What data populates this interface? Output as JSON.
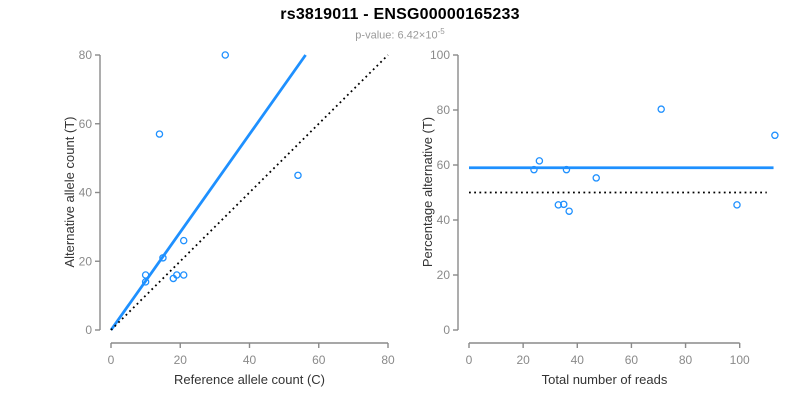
{
  "header": {
    "title": "rs3819011 - ENSG00000165233",
    "p_value_text": "p-value: 6.42×10",
    "p_value_exponent": "-5"
  },
  "colors": {
    "accent_blue": "#1E90FF",
    "axis_gray": "#8a8a8a",
    "tick_label_gray": "#8a8a8a",
    "axis_label_dark": "#333333",
    "dotted_black": "#000000",
    "subtitle_gray": "#9a9a9a",
    "background": "#ffffff"
  },
  "chart_data": [
    {
      "id": "allele-counts",
      "type": "scatter",
      "title": "",
      "xlabel": "Reference allele count (C)",
      "ylabel": "Alternative allele count (T)",
      "xlim": [
        0,
        80
      ],
      "ylim": [
        0,
        80
      ],
      "xticks": [
        0,
        20,
        40,
        60,
        80
      ],
      "yticks": [
        0,
        20,
        40,
        60,
        80
      ],
      "grid": false,
      "legend": null,
      "points": [
        [
          10,
          14
        ],
        [
          10,
          16
        ],
        [
          14,
          57
        ],
        [
          15,
          21
        ],
        [
          18,
          15
        ],
        [
          19,
          16
        ],
        [
          21,
          16
        ],
        [
          21,
          26
        ],
        [
          33,
          80
        ],
        [
          54,
          45
        ]
      ],
      "lines": [
        {
          "name": "fitted-ratio-line",
          "style": "solid",
          "color": "#1E90FF",
          "x1": 0,
          "y1": 0,
          "x2": 56.2,
          "y2": 80
        },
        {
          "name": "identity-line",
          "style": "dotted",
          "color": "#000000",
          "x1": 0,
          "y1": 0,
          "x2": 80,
          "y2": 80
        }
      ]
    },
    {
      "id": "percentage-vs-reads",
      "type": "scatter",
      "title": "",
      "xlabel": "Total number of reads",
      "ylabel": "Percentage alternative (T)",
      "xlim": [
        0,
        113
      ],
      "ylim": [
        0,
        100
      ],
      "xticks": [
        0,
        20,
        40,
        60,
        80,
        100
      ],
      "yticks": [
        0,
        20,
        40,
        60,
        80,
        100
      ],
      "grid": false,
      "legend": null,
      "points": [
        [
          24,
          58.3
        ],
        [
          26,
          61.5
        ],
        [
          33,
          45.5
        ],
        [
          35,
          45.7
        ],
        [
          36,
          58.3
        ],
        [
          37,
          43.2
        ],
        [
          47,
          55.3
        ],
        [
          71,
          80.3
        ],
        [
          99,
          45.5
        ],
        [
          113,
          70.8
        ]
      ],
      "lines": [
        {
          "name": "mean-percentage-line",
          "style": "solid",
          "color": "#1E90FF",
          "x1": 0,
          "y1": 59,
          "x2": 112.5,
          "y2": 59
        },
        {
          "name": "fifty-percent-line",
          "style": "dotted",
          "color": "#000000",
          "x1": 0,
          "y1": 50,
          "x2": 110,
          "y2": 50
        }
      ]
    }
  ]
}
